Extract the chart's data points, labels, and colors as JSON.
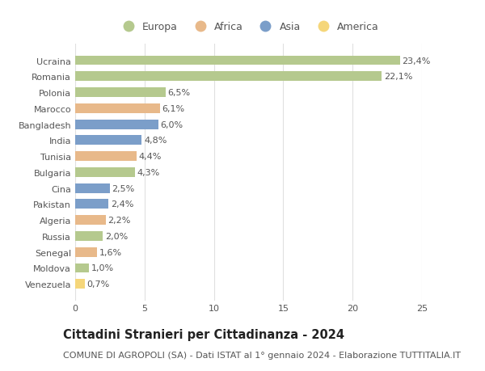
{
  "countries": [
    "Ucraina",
    "Romania",
    "Polonia",
    "Marocco",
    "Bangladesh",
    "India",
    "Tunisia",
    "Bulgaria",
    "Cina",
    "Pakistan",
    "Algeria",
    "Russia",
    "Senegal",
    "Moldova",
    "Venezuela"
  ],
  "values": [
    23.4,
    22.1,
    6.5,
    6.1,
    6.0,
    4.8,
    4.4,
    4.3,
    2.5,
    2.4,
    2.2,
    2.0,
    1.6,
    1.0,
    0.7
  ],
  "labels": [
    "23,4%",
    "22,1%",
    "6,5%",
    "6,1%",
    "6,0%",
    "4,8%",
    "4,4%",
    "4,3%",
    "2,5%",
    "2,4%",
    "2,2%",
    "2,0%",
    "1,6%",
    "1,0%",
    "0,7%"
  ],
  "continents": [
    "Europa",
    "Europa",
    "Europa",
    "Africa",
    "Asia",
    "Asia",
    "Africa",
    "Europa",
    "Asia",
    "Asia",
    "Africa",
    "Europa",
    "Africa",
    "Europa",
    "America"
  ],
  "continent_colors": {
    "Europa": "#b5c98e",
    "Africa": "#e8b98a",
    "Asia": "#7b9ec9",
    "America": "#f5d67a"
  },
  "legend_order": [
    "Europa",
    "Africa",
    "Asia",
    "America"
  ],
  "title": "Cittadini Stranieri per Cittadinanza - 2024",
  "subtitle": "COMUNE DI AGROPOLI (SA) - Dati ISTAT al 1° gennaio 2024 - Elaborazione TUTTITALIA.IT",
  "xlim": [
    0,
    25
  ],
  "xticks": [
    0,
    5,
    10,
    15,
    20,
    25
  ],
  "background_color": "#ffffff",
  "grid_color": "#e0e0e0",
  "bar_height": 0.6,
  "label_fontsize": 8,
  "tick_fontsize": 8,
  "title_fontsize": 10.5,
  "subtitle_fontsize": 8
}
